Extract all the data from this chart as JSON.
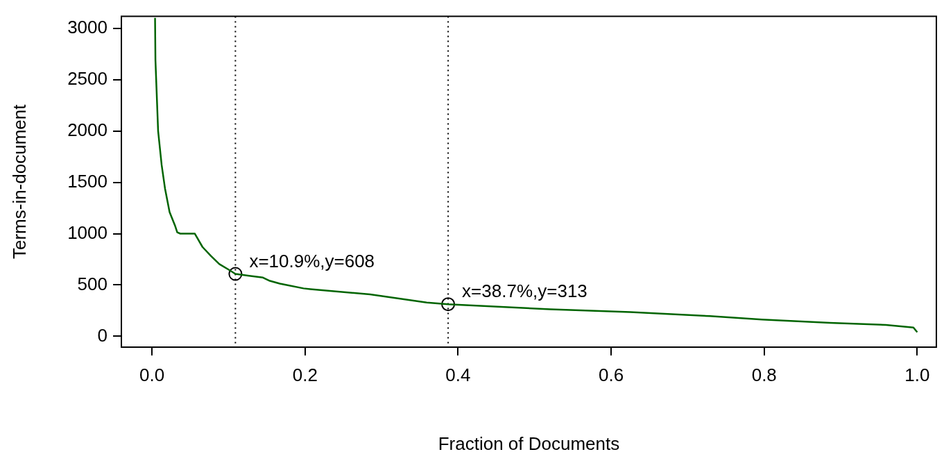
{
  "chart_data": {
    "type": "line",
    "xlabel": "Fraction of Documents",
    "ylabel": "Terms-in-document",
    "xlim": [
      -0.04,
      1.025
    ],
    "ylim": [
      -105,
      3115
    ],
    "xticks": [
      {
        "value": 0,
        "label": "0.0"
      },
      0.2,
      0.4,
      0.6,
      0.8,
      {
        "value": 1,
        "label": "1.0"
      }
    ],
    "yticks": [
      0,
      500,
      1000,
      1500,
      2000,
      2500,
      3000
    ],
    "grid": false,
    "legend": false,
    "marker": "none",
    "line_style": "solid",
    "series": [
      {
        "color": "#006400",
        "x": [
          0.004,
          0.0045,
          0.008,
          0.0126,
          0.017,
          0.023,
          0.03,
          0.033,
          0.037,
          0.056,
          0.059,
          0.066,
          0.077,
          0.088,
          0.1,
          0.109,
          0.127,
          0.145,
          0.154,
          0.167,
          0.176,
          0.198,
          0.207,
          0.285,
          0.359,
          0.387,
          0.521,
          0.625,
          0.729,
          0.797,
          0.886,
          0.959,
          0.995,
          1.0
        ],
        "values": [
          3100,
          2690,
          2000,
          1670,
          1440,
          1210,
          1080,
          1013,
          1000,
          1000,
          960,
          870,
          783,
          704,
          650,
          608,
          590,
          572,
          540,
          513,
          500,
          467,
          460,
          408,
          329,
          313,
          263,
          237,
          197,
          164,
          132,
          112,
          86,
          40
        ]
      },
      {
        "type": "scatter",
        "color": "#000000",
        "marker": "circle",
        "x": [
          0.109,
          0.387
        ],
        "values": [
          608,
          313
        ]
      }
    ],
    "ref_lines": [
      {
        "axis": "x",
        "value": 0.109,
        "color": "#000000",
        "line_style": "dotted"
      },
      {
        "axis": "x",
        "value": 0.387,
        "color": "#000000",
        "line_style": "dotted"
      }
    ],
    "annotations": [
      {
        "text": "x=10.9%,y=608",
        "x": 0.109,
        "y": 608
      },
      {
        "text": "x=38.7%,y=313",
        "x": 0.387,
        "y": 313
      }
    ]
  }
}
